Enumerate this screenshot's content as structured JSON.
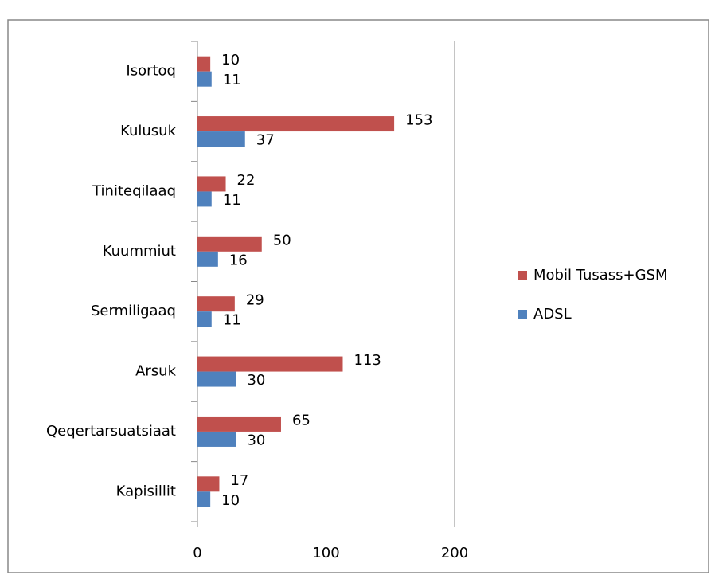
{
  "chart_data": {
    "type": "bar",
    "orientation": "horizontal",
    "categories": [
      "Isortoq",
      "Kulusuk",
      "Tiniteqilaaq",
      "Kuummiut",
      "Sermiligaaq",
      "Arsuk",
      "Qeqertarsuatsiaat",
      "Kapisillit"
    ],
    "series": [
      {
        "name": "Mobil Tusass+GSM",
        "color": "#c0504d",
        "values": [
          10,
          153,
          22,
          50,
          29,
          113,
          65,
          17
        ]
      },
      {
        "name": "ADSL",
        "color": "#4f81bd",
        "values": [
          11,
          37,
          11,
          16,
          11,
          30,
          30,
          10
        ]
      }
    ],
    "xlim": [
      0,
      200
    ],
    "xticks": [
      0,
      100,
      200
    ],
    "grid": true,
    "legend": "right"
  }
}
